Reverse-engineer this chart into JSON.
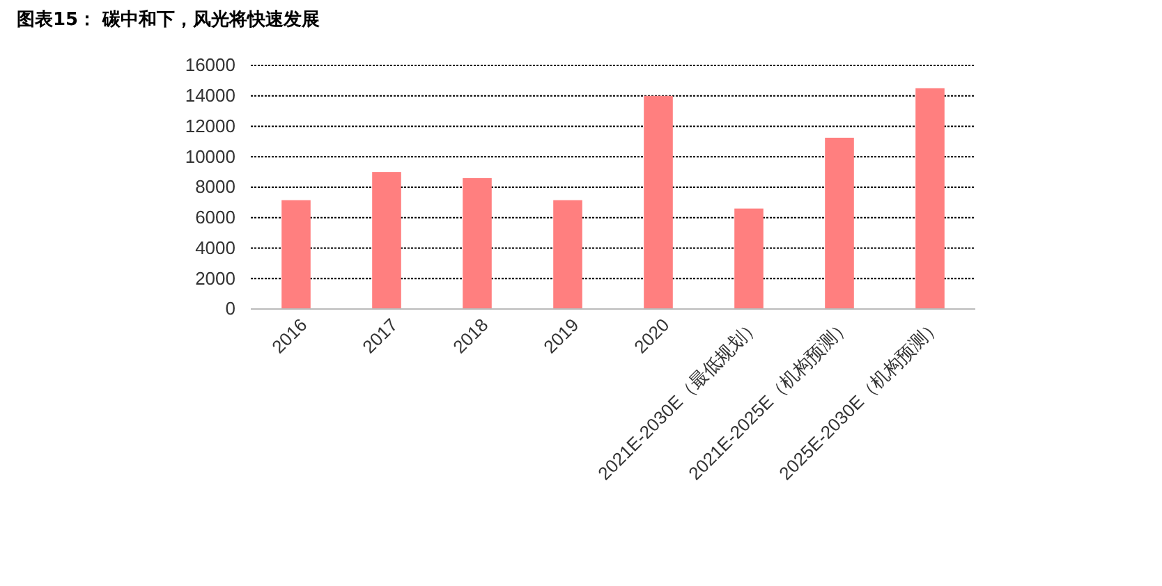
{
  "chart_data": {
    "type": "bar",
    "title": "图表15： 碳中和下，风光将快速发展",
    "categories": [
      "2016",
      "2017",
      "2018",
      "2019",
      "2020",
      "2021E-2030E（最低规划）",
      "2021E-2025E（机构预测）",
      "2025E-2030E（机构预测）"
    ],
    "values": [
      7150,
      9000,
      8600,
      7150,
      14000,
      6600,
      11250,
      14500
    ],
    "color": "#ff7f7f",
    "ylim": [
      0,
      16000
    ],
    "yticks": [
      0,
      2000,
      4000,
      6000,
      8000,
      10000,
      12000,
      14000,
      16000
    ],
    "grid": "y",
    "line_style": "dotted"
  }
}
